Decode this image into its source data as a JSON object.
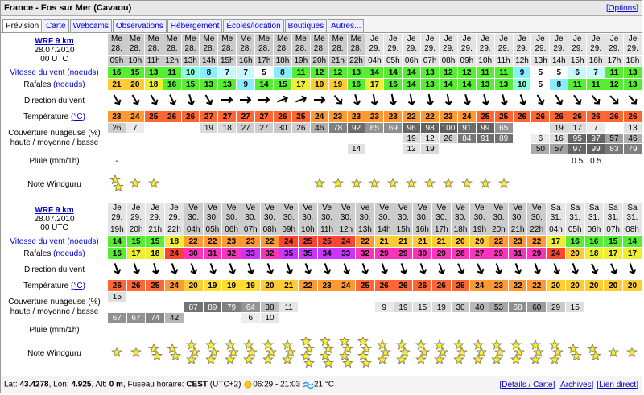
{
  "header": {
    "title": "France - Fos sur Mer (Cavaou)",
    "options": "[Options]"
  },
  "tabs": [
    "Prévision",
    "Carte",
    "Webcams",
    "Observations",
    "Hébergement",
    "Écoles/location",
    "Boutiques",
    "Autres..."
  ],
  "labels": {
    "wind": "Vitesse du vent",
    "knots": "(noeuds)",
    "gusts": "Rafales",
    "dir": "Direction du vent",
    "temp": "Température",
    "celsius": "(°C)",
    "cloud": "Couverture nuageuse (%)",
    "cloud_sub": "haute / moyenne / basse",
    "rain": "Pluie (mm/1h)",
    "rating": "Note Windguru"
  },
  "blocks": [
    {
      "model": "WRF 9 km",
      "date": "28.07.2010",
      "utc": "00 UTC",
      "days": [
        "Me",
        "Me",
        "Me",
        "Me",
        "Me",
        "Me",
        "Me",
        "Me",
        "Me",
        "Me",
        "Me",
        "Me",
        "Me",
        "Me",
        "Je",
        "Je",
        "Je",
        "Je",
        "Je",
        "Je",
        "Je",
        "Je",
        "Je",
        "Je",
        "Je",
        "Je",
        "Je",
        "Je",
        "Je"
      ],
      "dates": [
        "28.",
        "28.",
        "28.",
        "28.",
        "28.",
        "28.",
        "28.",
        "28.",
        "28.",
        "28.",
        "28.",
        "28.",
        "28.",
        "28.",
        "29.",
        "29.",
        "29.",
        "29.",
        "29.",
        "29.",
        "29.",
        "29.",
        "29.",
        "29.",
        "29.",
        "29.",
        "29.",
        "29.",
        "29."
      ],
      "hours": [
        "09h",
        "10h",
        "11h",
        "12h",
        "13h",
        "14h",
        "15h",
        "16h",
        "17h",
        "18h",
        "19h",
        "20h",
        "21h",
        "22h",
        "04h",
        "05h",
        "06h",
        "07h",
        "08h",
        "09h",
        "10h",
        "11h",
        "12h",
        "13h",
        "14h",
        "15h",
        "16h",
        "17h",
        "18h"
      ],
      "wind": [
        16,
        15,
        13,
        11,
        10,
        8,
        7,
        7,
        5,
        8,
        11,
        12,
        12,
        13,
        14,
        14,
        14,
        13,
        12,
        12,
        11,
        11,
        9,
        5,
        5,
        6,
        7,
        11,
        13
      ],
      "gusts": [
        21,
        20,
        18,
        16,
        15,
        13,
        13,
        9,
        14,
        15,
        17,
        19,
        19,
        16,
        17,
        16,
        14,
        13,
        14,
        14,
        13,
        13,
        10,
        5,
        8,
        11,
        11,
        12,
        13
      ],
      "dir": [
        150,
        150,
        150,
        155,
        165,
        150,
        90,
        90,
        90,
        70,
        70,
        90,
        140,
        165,
        170,
        170,
        170,
        170,
        170,
        165,
        165,
        165,
        160,
        150,
        150,
        145,
        140,
        135,
        140
      ],
      "temp": [
        23,
        24,
        25,
        26,
        26,
        27,
        27,
        27,
        27,
        26,
        25,
        24,
        23,
        23,
        23,
        23,
        22,
        22,
        23,
        24,
        25,
        25,
        26,
        26,
        26,
        26,
        26,
        26,
        26
      ],
      "cloud_high": [
        26,
        7,
        null,
        null,
        null,
        19,
        18,
        27,
        27,
        30,
        26,
        46,
        78,
        92,
        65,
        69,
        96,
        98,
        100,
        91,
        99,
        65,
        null,
        null,
        19,
        17,
        7,
        null,
        13
      ],
      "cloud_mid": [
        null,
        null,
        null,
        null,
        null,
        null,
        null,
        null,
        null,
        null,
        null,
        null,
        null,
        null,
        null,
        null,
        19,
        12,
        26,
        84,
        91,
        89,
        null,
        6,
        16,
        95,
        97,
        57,
        46
      ],
      "cloud_low": [
        null,
        null,
        null,
        null,
        null,
        null,
        null,
        null,
        null,
        null,
        null,
        null,
        null,
        14,
        null,
        null,
        12,
        19,
        null,
        null,
        null,
        null,
        null,
        50,
        57,
        97,
        99,
        83,
        79
      ],
      "rain": [
        "-",
        null,
        null,
        null,
        null,
        null,
        null,
        null,
        null,
        null,
        null,
        null,
        null,
        null,
        null,
        null,
        null,
        null,
        null,
        null,
        null,
        null,
        null,
        null,
        null,
        0.5,
        0.5,
        null,
        null
      ],
      "rating": [
        2,
        1,
        1,
        0,
        0,
        0,
        0,
        0,
        0,
        0,
        0,
        1,
        1,
        1,
        1,
        1,
        1,
        1,
        1,
        1,
        1,
        1,
        0,
        0,
        0,
        0,
        0,
        0,
        0
      ]
    },
    {
      "model": "WRF 9 km",
      "date": "28.07.2010",
      "utc": "00 UTC",
      "days": [
        "Je",
        "Je",
        "Je",
        "Je",
        "Ve",
        "Ve",
        "Ve",
        "Ve",
        "Ve",
        "Ve",
        "Ve",
        "Ve",
        "Ve",
        "Ve",
        "Ve",
        "Ve",
        "Ve",
        "Ve",
        "Ve",
        "Ve",
        "Ve",
        "Ve",
        "Ve",
        "Sa",
        "Sa",
        "Sa",
        "Sa",
        "Sa"
      ],
      "dates": [
        "29.",
        "29.",
        "29.",
        "29.",
        "30.",
        "30.",
        "30.",
        "30.",
        "30.",
        "30.",
        "30.",
        "30.",
        "30.",
        "30.",
        "30.",
        "30.",
        "30.",
        "30.",
        "30.",
        "30.",
        "30.",
        "30.",
        "30.",
        "31.",
        "31.",
        "31.",
        "31.",
        "31."
      ],
      "hours": [
        "19h",
        "20h",
        "21h",
        "22h",
        "04h",
        "05h",
        "06h",
        "07h",
        "08h",
        "09h",
        "10h",
        "11h",
        "12h",
        "13h",
        "14h",
        "15h",
        "16h",
        "17h",
        "18h",
        "19h",
        "20h",
        "21h",
        "22h",
        "04h",
        "05h",
        "06h",
        "07h",
        "08h"
      ],
      "wind": [
        14,
        15,
        15,
        18,
        22,
        22,
        23,
        23,
        22,
        24,
        25,
        25,
        24,
        22,
        21,
        21,
        21,
        21,
        20,
        20,
        22,
        23,
        22,
        17,
        16,
        16,
        15,
        14
      ],
      "gusts": [
        16,
        17,
        18,
        24,
        30,
        31,
        32,
        33,
        32,
        35,
        35,
        34,
        33,
        32,
        29,
        29,
        30,
        29,
        28,
        27,
        29,
        31,
        29,
        24,
        20,
        18,
        17,
        17
      ],
      "dir": [
        160,
        160,
        165,
        160,
        160,
        160,
        160,
        160,
        160,
        160,
        160,
        160,
        160,
        160,
        160,
        160,
        160,
        160,
        155,
        155,
        160,
        160,
        160,
        160,
        160,
        155,
        155,
        160
      ],
      "temp": [
        26,
        26,
        25,
        24,
        20,
        19,
        19,
        19,
        20,
        21,
        22,
        23,
        24,
        25,
        26,
        26,
        26,
        26,
        25,
        24,
        23,
        22,
        22,
        20,
        20,
        20,
        20,
        20
      ],
      "cloud_high": [
        15,
        null,
        null,
        null,
        null,
        null,
        null,
        null,
        null,
        null,
        null,
        null,
        null,
        null,
        null,
        null,
        null,
        null,
        null,
        null,
        null,
        null,
        null,
        null,
        null,
        null,
        null,
        null
      ],
      "cloud_mid": [
        null,
        null,
        null,
        null,
        87,
        89,
        79,
        64,
        38,
        11,
        null,
        null,
        null,
        null,
        9,
        19,
        15,
        19,
        30,
        40,
        53,
        68,
        60,
        29,
        15,
        null,
        null,
        null
      ],
      "cloud_low": [
        67,
        67,
        74,
        42,
        null,
        null,
        null,
        6,
        10,
        null,
        null,
        null,
        null,
        null,
        null,
        null,
        null,
        null,
        null,
        null,
        null,
        null,
        null,
        null,
        null,
        null,
        null,
        null
      ],
      "rain": [
        null,
        null,
        null,
        null,
        null,
        null,
        null,
        null,
        null,
        null,
        null,
        null,
        null,
        null,
        null,
        null,
        null,
        null,
        null,
        null,
        null,
        null,
        null,
        null,
        null,
        null,
        null,
        null
      ],
      "rating": [
        1,
        1,
        2,
        2,
        3,
        3,
        3,
        3,
        3,
        3,
        4,
        4,
        4,
        4,
        3,
        3,
        3,
        3,
        3,
        3,
        3,
        3,
        3,
        3,
        2,
        2,
        1,
        1
      ]
    }
  ],
  "footer": {
    "lat_label": "Lat:",
    "lat": "43.4278",
    "lon_label": ", Lon:",
    "lon": "4.925",
    "alt_label": ", Alt:",
    "alt": "0 m",
    "tz_label": ", Fuseau horaire:",
    "tz": "CEST",
    "utc_offset": "(UTC+2)",
    "sun": "06:29 - 21:03",
    "water": "21 °C",
    "links": [
      "[Détails / Carte]",
      "[Archives]",
      "[Lien direct]"
    ]
  }
}
